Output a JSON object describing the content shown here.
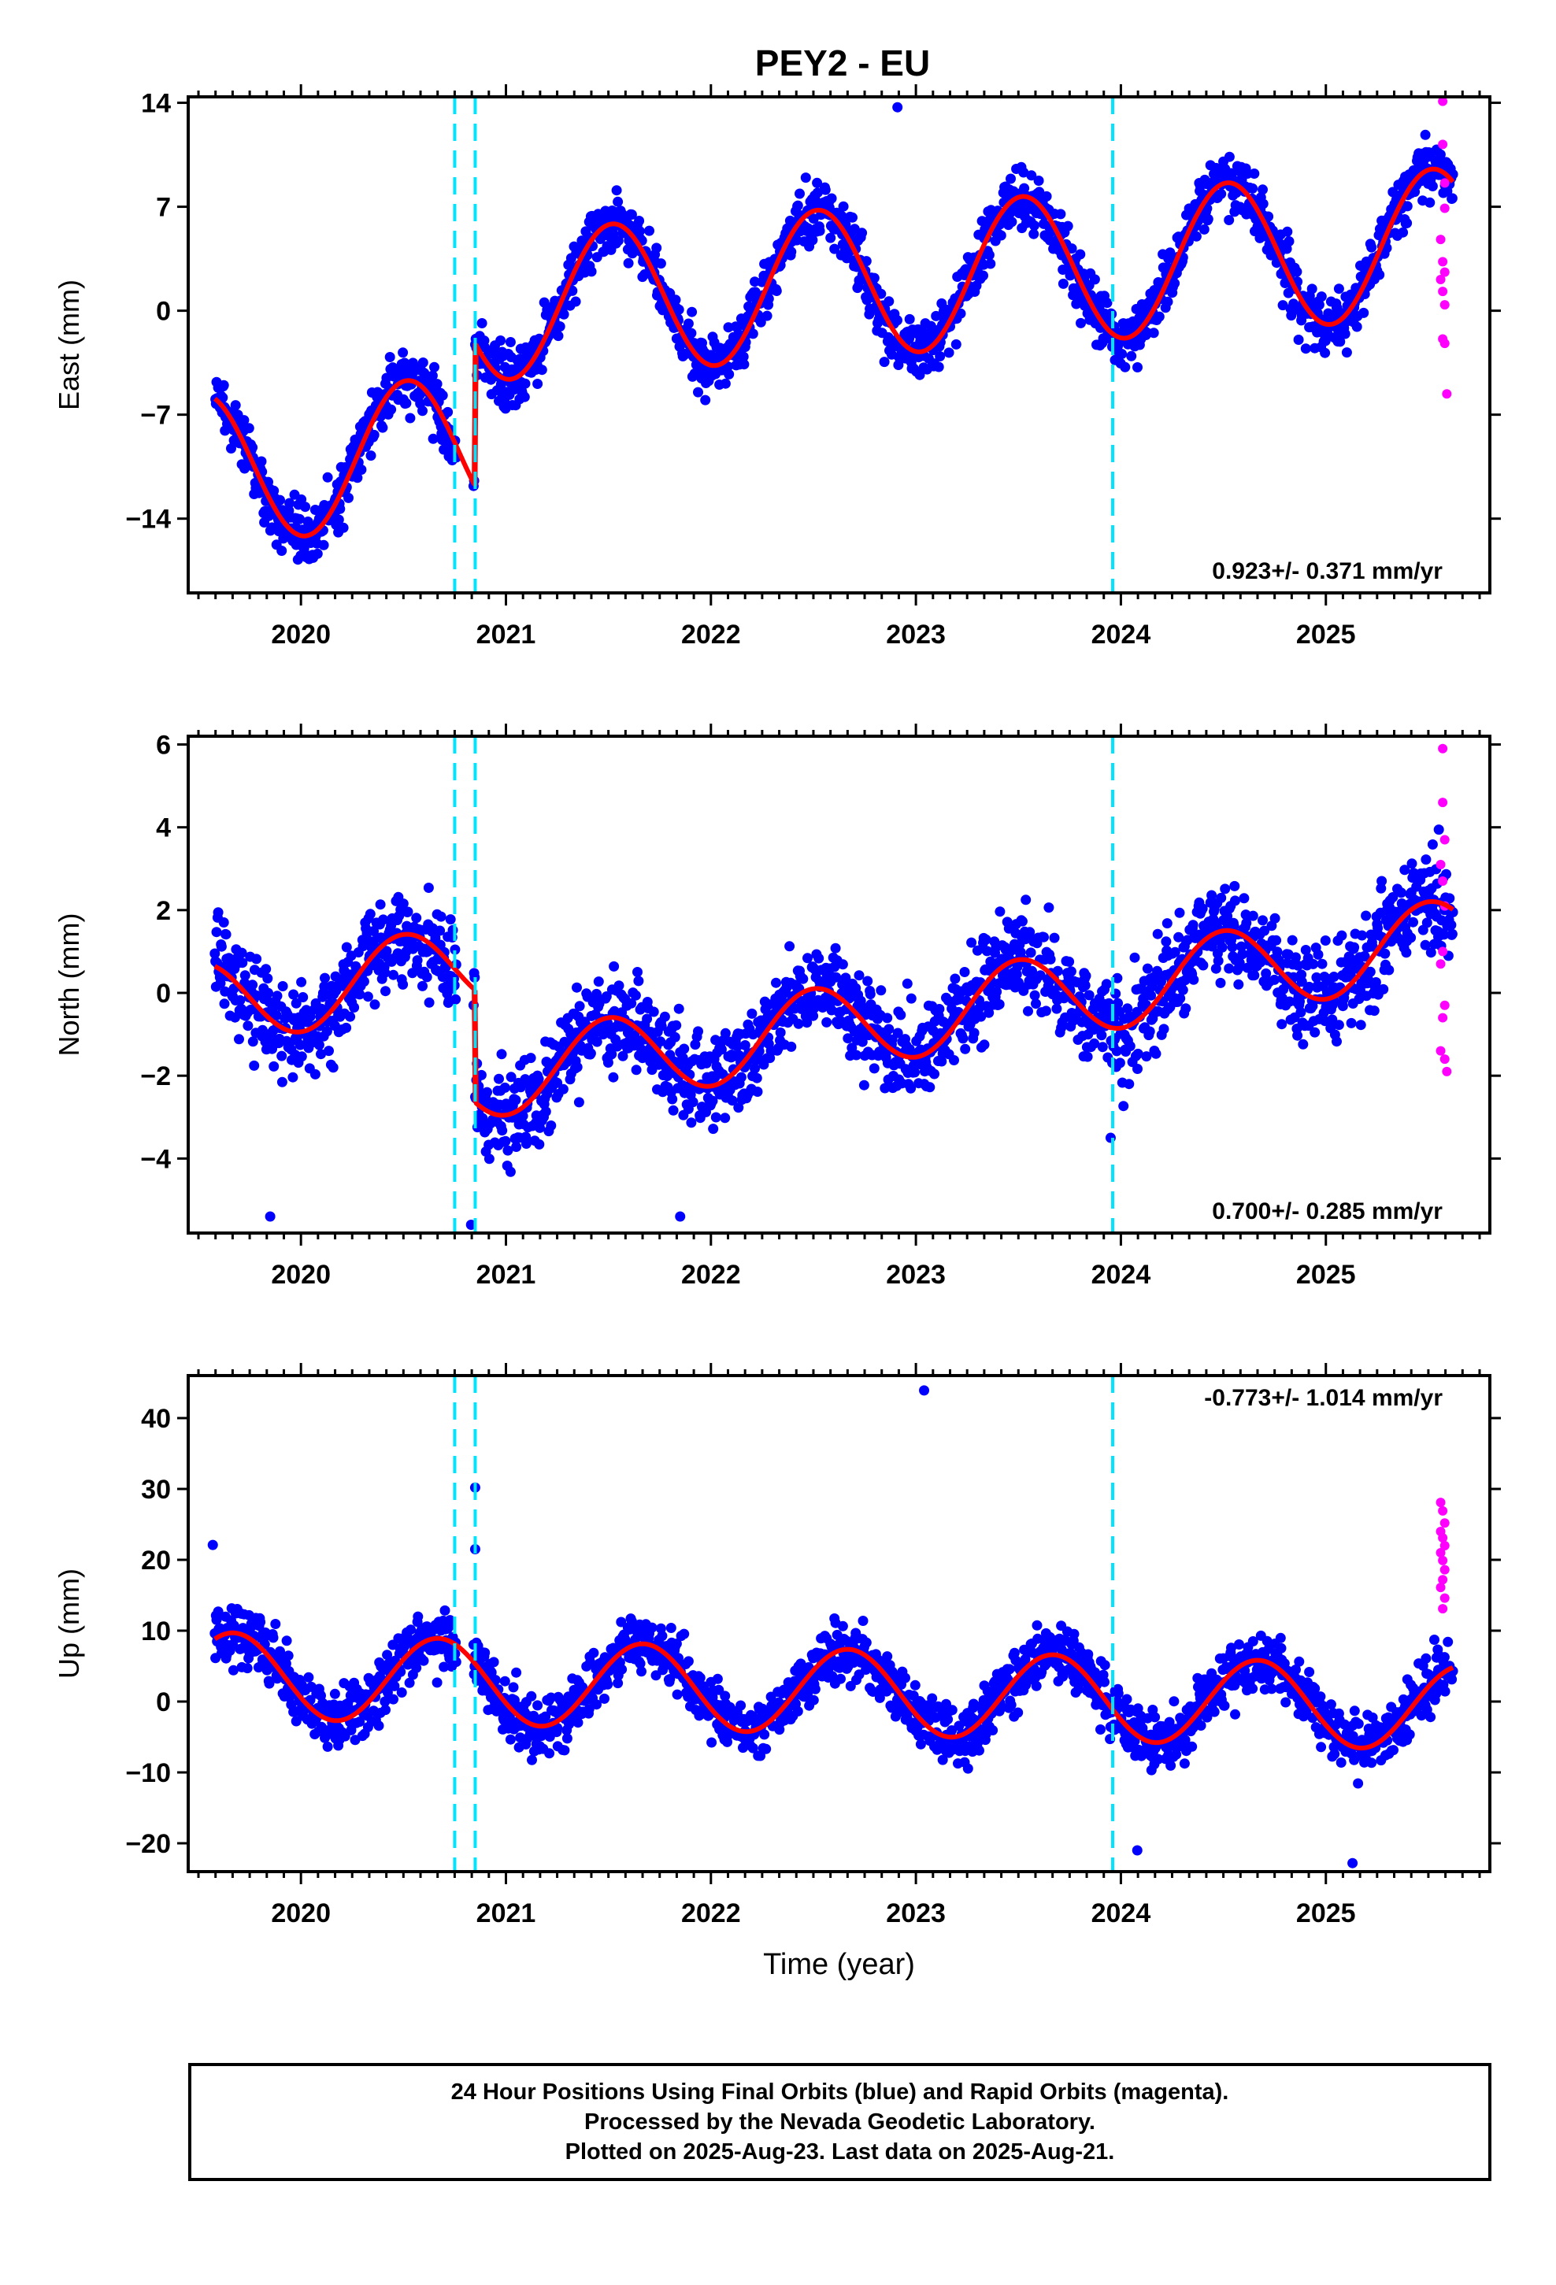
{
  "title": "PEY2 - EU",
  "footer": {
    "line1": "24 Hour Positions Using Final Orbits (blue) and Rapid Orbits (magenta).",
    "line2": "Processed by the Nevada Geodetic Laboratory.",
    "line3": "Plotted on 2025-Aug-23. Last data on 2025-Aug-21."
  },
  "colors": {
    "final_orbits": "#0000ff",
    "rapid_orbits": "#ff00ff",
    "model_fit": "#ff0000",
    "equipment_change": "#00e5ff",
    "axes": "#000000"
  },
  "chart_data": [
    {
      "type": "scatter",
      "panel": "east",
      "title": "PEY2 - EU",
      "xlabel": "",
      "ylabel": "East (mm)",
      "xticks": [
        2020,
        2021,
        2022,
        2023,
        2024,
        2025
      ],
      "yticks": [
        -14,
        -7,
        0,
        7,
        14
      ],
      "xlim": [
        2019.45,
        2025.8
      ],
      "ylim": [
        -19,
        14.4
      ],
      "grid": false,
      "rate_label": "0.923+/- 0.371 mm/yr",
      "rate_position": "bottom-right",
      "vertical_markers": [
        2020.75,
        2020.85,
        2023.96
      ],
      "model": {
        "rate": 0.923,
        "annual_amp": 5.0,
        "annual_phase": 0.27,
        "segments": [
          {
            "start": 2019.58,
            "end": 2020.85,
            "offset": -10.0,
            "anchor": 2020.2
          },
          {
            "start": 2020.85,
            "end": 2025.62,
            "offset": 1.75,
            "anchor": 2022.5
          }
        ]
      },
      "final_scatter_sd": 1.5,
      "rapid_orbit_points": [
        {
          "x": 2025.57,
          "y": 14.1
        },
        {
          "x": 2025.57,
          "y": 11.2
        },
        {
          "x": 2025.58,
          "y": 8.6
        },
        {
          "x": 2025.58,
          "y": 6.9
        },
        {
          "x": 2025.56,
          "y": 4.8
        },
        {
          "x": 2025.57,
          "y": 3.3
        },
        {
          "x": 2025.58,
          "y": 2.6
        },
        {
          "x": 2025.56,
          "y": 2.1
        },
        {
          "x": 2025.57,
          "y": 1.3
        },
        {
          "x": 2025.58,
          "y": 0.4
        },
        {
          "x": 2025.57,
          "y": -1.9
        },
        {
          "x": 2025.58,
          "y": -2.2
        },
        {
          "x": 2025.59,
          "y": -5.6
        }
      ],
      "outliers": [
        {
          "x": 2022.91,
          "y": 13.7
        }
      ]
    },
    {
      "type": "scatter",
      "panel": "north",
      "xlabel": "",
      "ylabel": "North (mm)",
      "xticks": [
        2020,
        2021,
        2022,
        2023,
        2024,
        2025
      ],
      "yticks": [
        -4,
        -2,
        0,
        2,
        4,
        6
      ],
      "xlim": [
        2019.45,
        2025.8
      ],
      "ylim": [
        -5.8,
        6.2
      ],
      "grid": false,
      "rate_label": "0.700+/- 0.285 mm/yr",
      "rate_position": "bottom-right",
      "vertical_markers": [
        2020.75,
        2020.85,
        2023.96
      ],
      "model": {
        "rate": 0.7,
        "annual_amp": 1.0,
        "annual_phase": 0.25,
        "segments": [
          {
            "start": 2019.58,
            "end": 2020.85,
            "offset": 0.2,
            "anchor": 2020.2
          },
          {
            "start": 2020.85,
            "end": 2025.62,
            "offset": -0.55,
            "anchor": 2023.0
          }
        ]
      },
      "final_scatter_sd": 0.9,
      "rapid_orbit_points": [
        {
          "x": 2025.57,
          "y": 5.9
        },
        {
          "x": 2025.57,
          "y": 4.6
        },
        {
          "x": 2025.58,
          "y": 3.7
        },
        {
          "x": 2025.56,
          "y": 3.1
        },
        {
          "x": 2025.57,
          "y": 2.7
        },
        {
          "x": 2025.58,
          "y": 2.1
        },
        {
          "x": 2025.57,
          "y": 1.0
        },
        {
          "x": 2025.56,
          "y": 0.7
        },
        {
          "x": 2025.58,
          "y": -0.3
        },
        {
          "x": 2025.57,
          "y": -0.6
        },
        {
          "x": 2025.56,
          "y": -1.4
        },
        {
          "x": 2025.58,
          "y": -1.6
        },
        {
          "x": 2025.59,
          "y": -1.9
        }
      ],
      "outliers": [
        {
          "x": 2020.83,
          "y": -5.6
        },
        {
          "x": 2019.85,
          "y": -5.4
        },
        {
          "x": 2021.85,
          "y": -5.4
        },
        {
          "x": 2023.95,
          "y": -3.5
        }
      ]
    },
    {
      "type": "scatter",
      "panel": "up",
      "xlabel": "Time (year)",
      "ylabel": "Up (mm)",
      "xticks": [
        2020,
        2021,
        2022,
        2023,
        2024,
        2025
      ],
      "yticks": [
        -20,
        -10,
        0,
        10,
        20,
        30,
        40
      ],
      "xlim": [
        2019.45,
        2025.8
      ],
      "ylim": [
        -24,
        46
      ],
      "grid": false,
      "rate_label": "-0.773+/- 1.014 mm/yr",
      "rate_position": "top-right",
      "vertical_markers": [
        2020.75,
        2020.85,
        2023.96
      ],
      "model": {
        "rate": -0.773,
        "annual_amp": 6.0,
        "annual_phase": 0.42,
        "segments": [
          {
            "start": 2019.58,
            "end": 2025.62,
            "offset": 1.5,
            "anchor": 2022.5
          }
        ]
      },
      "final_scatter_sd": 3.2,
      "rapid_orbit_points": [
        {
          "x": 2025.56,
          "y": 28.1
        },
        {
          "x": 2025.57,
          "y": 26.9
        },
        {
          "x": 2025.58,
          "y": 25.2
        },
        {
          "x": 2025.56,
          "y": 24.0
        },
        {
          "x": 2025.57,
          "y": 23.1
        },
        {
          "x": 2025.58,
          "y": 22.0
        },
        {
          "x": 2025.56,
          "y": 21.0
        },
        {
          "x": 2025.57,
          "y": 19.9
        },
        {
          "x": 2025.58,
          "y": 18.6
        },
        {
          "x": 2025.57,
          "y": 17.2
        },
        {
          "x": 2025.56,
          "y": 16.1
        },
        {
          "x": 2025.58,
          "y": 14.6
        },
        {
          "x": 2025.57,
          "y": 13.1
        }
      ],
      "outliers": [
        {
          "x": 2023.04,
          "y": 43.9
        },
        {
          "x": 2020.85,
          "y": 30.2
        },
        {
          "x": 2020.85,
          "y": 21.5
        },
        {
          "x": 2019.57,
          "y": 22.1
        },
        {
          "x": 2024.08,
          "y": -21.0
        },
        {
          "x": 2025.13,
          "y": -22.8
        }
      ]
    }
  ]
}
